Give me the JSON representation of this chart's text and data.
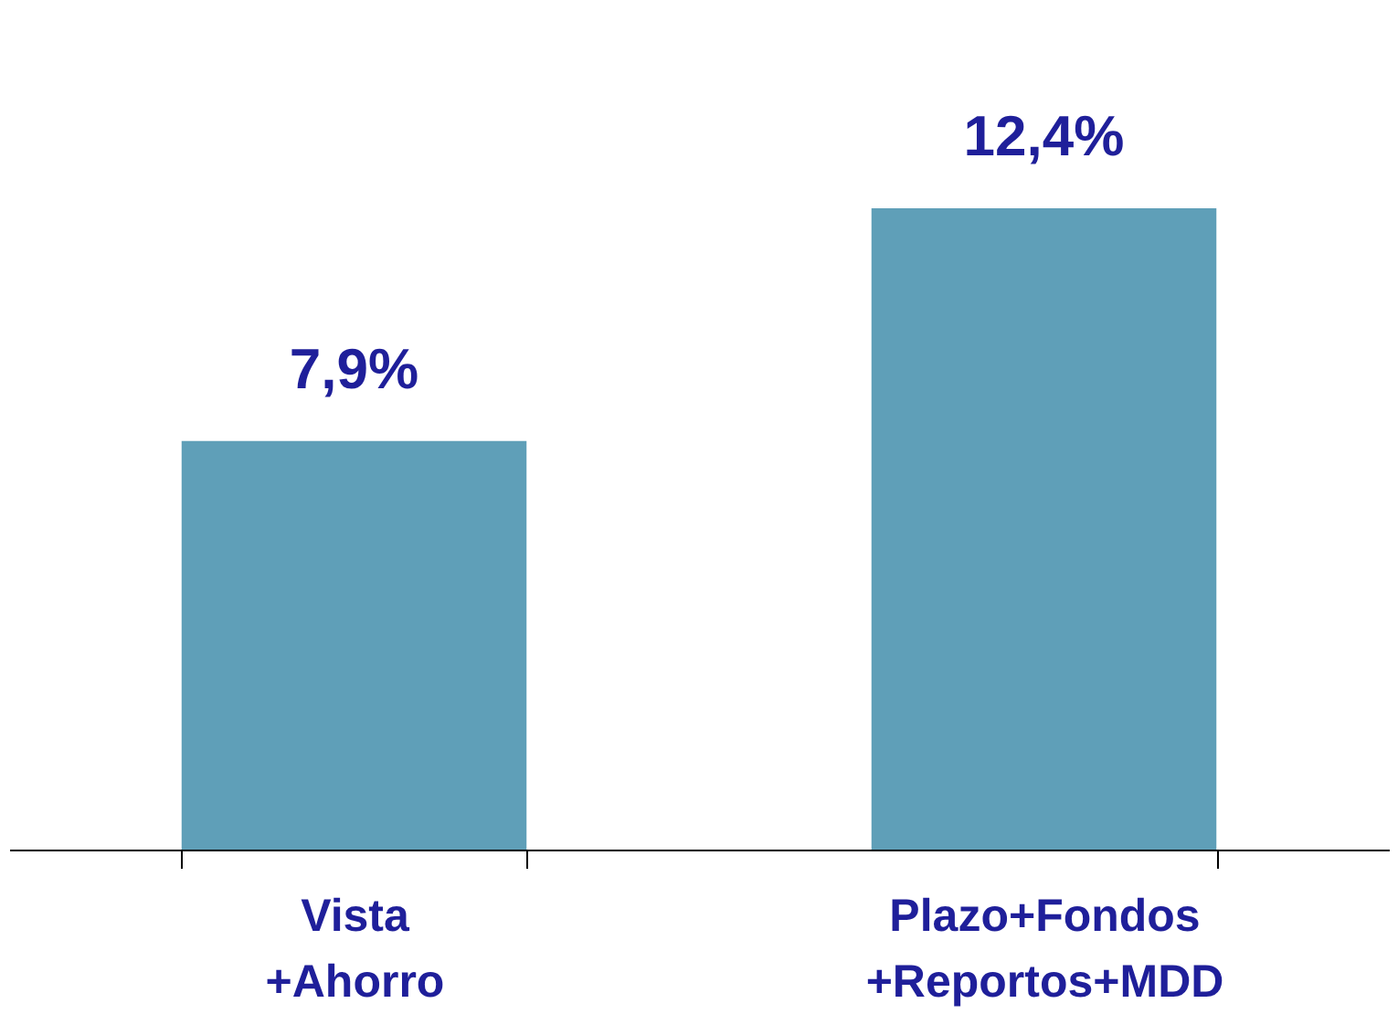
{
  "chart_data": {
    "type": "bar",
    "categories": [
      "Vista\n+Ahorro",
      "Plazo+Fondos\n+Reportos+MDD"
    ],
    "values": [
      7.9,
      12.4
    ],
    "color": "#5f9fb8",
    "data_labels": true,
    "value_labels": [
      "7,9%",
      "12,4%"
    ]
  }
}
